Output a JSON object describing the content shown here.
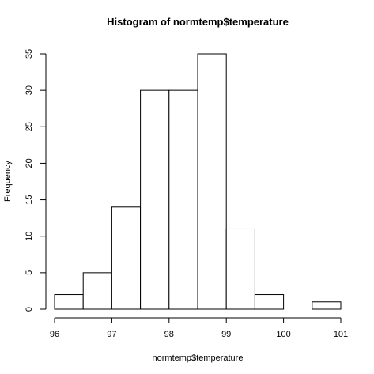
{
  "chart_data": {
    "type": "bar",
    "title": "Histogram of normtemp$temperature",
    "xlabel": "normtemp$temperature",
    "ylabel": "Frequency",
    "bins": [
      {
        "from": 96.0,
        "to": 96.5,
        "count": 2
      },
      {
        "from": 96.5,
        "to": 97.0,
        "count": 5
      },
      {
        "from": 97.0,
        "to": 97.5,
        "count": 14
      },
      {
        "from": 97.5,
        "to": 98.0,
        "count": 30
      },
      {
        "from": 98.0,
        "to": 98.5,
        "count": 30
      },
      {
        "from": 98.5,
        "to": 99.0,
        "count": 35
      },
      {
        "from": 99.0,
        "to": 99.5,
        "count": 11
      },
      {
        "from": 99.5,
        "to": 100.0,
        "count": 2
      },
      {
        "from": 100.0,
        "to": 100.5,
        "count": 0
      },
      {
        "from": 100.5,
        "to": 101.0,
        "count": 1
      }
    ],
    "xlim": [
      96,
      101
    ],
    "ylim": [
      0,
      35
    ],
    "x_ticks": [
      96,
      97,
      98,
      99,
      100,
      101
    ],
    "y_ticks": [
      0,
      5,
      10,
      15,
      20,
      25,
      30,
      35
    ],
    "grid": false
  }
}
